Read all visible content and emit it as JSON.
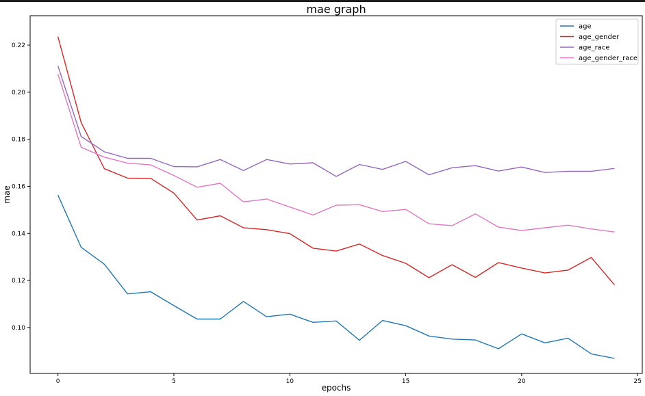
{
  "chart_data": {
    "type": "line",
    "title": "mae graph",
    "xlabel": "epochs",
    "ylabel": "mae",
    "xlim": [
      -1.2,
      25.2
    ],
    "ylim": [
      0.0805,
      0.2325
    ],
    "xticks": [
      0,
      5,
      10,
      15,
      20,
      25
    ],
    "yticks": [
      0.1,
      0.12,
      0.14,
      0.16,
      0.18,
      0.2,
      0.22
    ],
    "ytick_labels": [
      "0.10",
      "0.12",
      "0.14",
      "0.16",
      "0.18",
      "0.20",
      "0.22"
    ],
    "grid": false,
    "legend_position": "top-right",
    "x": [
      0,
      1,
      2,
      3,
      4,
      5,
      6,
      7,
      8,
      9,
      10,
      11,
      12,
      13,
      14,
      15,
      16,
      17,
      18,
      19,
      20,
      21,
      22,
      23,
      24
    ],
    "series": [
      {
        "name": "age",
        "color": "#1f77b4",
        "values": [
          0.1563,
          0.1341,
          0.1269,
          0.1143,
          0.1152,
          0.1093,
          0.1036,
          0.1036,
          0.1111,
          0.1046,
          0.1057,
          0.1022,
          0.1028,
          0.0946,
          0.103,
          0.1008,
          0.0964,
          0.0951,
          0.0947,
          0.091,
          0.0973,
          0.0935,
          0.0955,
          0.0888,
          0.0869
        ]
      },
      {
        "name": "age_gender",
        "color": "#d62728",
        "values": [
          0.2236,
          0.1871,
          0.1675,
          0.1635,
          0.1634,
          0.1571,
          0.1457,
          0.1475,
          0.1424,
          0.1416,
          0.1399,
          0.1337,
          0.1325,
          0.1355,
          0.1306,
          0.1273,
          0.1212,
          0.1267,
          0.1213,
          0.1276,
          0.1253,
          0.1232,
          0.1244,
          0.1298,
          0.1181
        ]
      },
      {
        "name": "age_race",
        "color": "#9467bd",
        "values": [
          0.2112,
          0.1812,
          0.1747,
          0.1719,
          0.1719,
          0.1684,
          0.1683,
          0.1714,
          0.1667,
          0.1714,
          0.1695,
          0.17,
          0.1642,
          0.1693,
          0.1672,
          0.1706,
          0.1649,
          0.1679,
          0.1688,
          0.1665,
          0.1682,
          0.1659,
          0.1664,
          0.1664,
          0.1676
        ]
      },
      {
        "name": "age_gender_race",
        "color": "#e377c2",
        "values": [
          0.2077,
          0.1766,
          0.1724,
          0.1699,
          0.1691,
          0.1646,
          0.1596,
          0.1613,
          0.1534,
          0.1546,
          0.1512,
          0.1478,
          0.152,
          0.1522,
          0.1493,
          0.1502,
          0.1441,
          0.1433,
          0.1483,
          0.1427,
          0.1412,
          0.1424,
          0.1435,
          0.1419,
          0.1406
        ]
      }
    ]
  }
}
